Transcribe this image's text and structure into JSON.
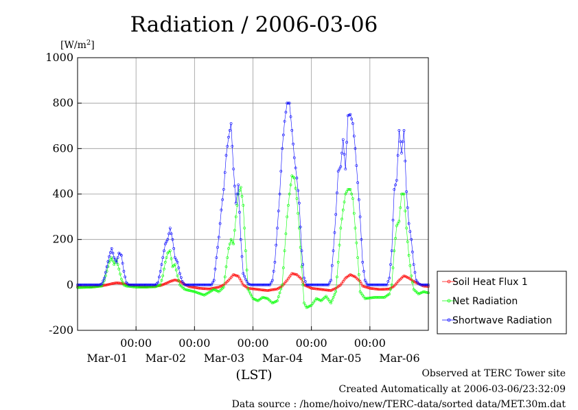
{
  "chart_data": {
    "type": "line",
    "title": "Radiation / 2006-03-06",
    "ylabel_unit": "[W/m",
    "ylabel_unit_sup": "2",
    "ylabel_unit_close": "]",
    "xlabel": "(LST)",
    "ylim": [
      -200,
      1000
    ],
    "xlim": [
      0,
      144
    ],
    "grid": true,
    "legend_position": "right",
    "y_ticks": [
      -200,
      0,
      200,
      400,
      600,
      800,
      1000
    ],
    "y_tick_labels": [
      "-200",
      "0",
      "200",
      "400",
      "600",
      "800",
      "1000"
    ],
    "x_ticks": [
      {
        "x": 24,
        "time": "00:00",
        "date": "Mar-01"
      },
      {
        "x": 48,
        "time": "00:00",
        "date": "Mar-02"
      },
      {
        "x": 72,
        "time": "00:00",
        "date": "Mar-03"
      },
      {
        "x": 96,
        "time": "00:00",
        "date": "Mar-04"
      },
      {
        "x": 120,
        "time": "00:00",
        "date": "Mar-05"
      },
      {
        "x": 144,
        "time": "",
        "date": "Mar-06"
      }
    ],
    "series": [
      {
        "name": "Soil Heat Flux 1",
        "color": "#ff0000",
        "points": [
          [
            0,
            -8
          ],
          [
            6,
            -7
          ],
          [
            10,
            -4
          ],
          [
            12,
            0
          ],
          [
            14,
            5
          ],
          [
            16,
            9
          ],
          [
            18,
            7
          ],
          [
            20,
            2
          ],
          [
            22,
            -3
          ],
          [
            26,
            -7
          ],
          [
            30,
            -8
          ],
          [
            34,
            -3
          ],
          [
            36,
            5
          ],
          [
            38,
            15
          ],
          [
            40,
            22
          ],
          [
            42,
            15
          ],
          [
            44,
            2
          ],
          [
            46,
            -8
          ],
          [
            50,
            -15
          ],
          [
            54,
            -18
          ],
          [
            58,
            -10
          ],
          [
            60,
            0
          ],
          [
            62,
            20
          ],
          [
            64,
            45
          ],
          [
            66,
            38
          ],
          [
            67,
            20
          ],
          [
            68,
            0
          ],
          [
            70,
            -15
          ],
          [
            74,
            -20
          ],
          [
            78,
            -25
          ],
          [
            82,
            -18
          ],
          [
            84,
            -5
          ],
          [
            86,
            20
          ],
          [
            88,
            50
          ],
          [
            90,
            45
          ],
          [
            92,
            25
          ],
          [
            93,
            0
          ],
          [
            96,
            -15
          ],
          [
            100,
            -20
          ],
          [
            104,
            -25
          ],
          [
            106,
            -15
          ],
          [
            108,
            0
          ],
          [
            110,
            30
          ],
          [
            112,
            45
          ],
          [
            114,
            35
          ],
          [
            116,
            15
          ],
          [
            117,
            -5
          ],
          [
            120,
            -15
          ],
          [
            124,
            -20
          ],
          [
            128,
            -18
          ],
          [
            130,
            -5
          ],
          [
            132,
            20
          ],
          [
            134,
            40
          ],
          [
            136,
            30
          ],
          [
            138,
            15
          ],
          [
            140,
            5
          ],
          [
            142,
            -5
          ],
          [
            144,
            -7
          ]
        ]
      },
      {
        "name": "Net Radiation",
        "color": "#00ff00",
        "points": [
          [
            0,
            -12
          ],
          [
            6,
            -10
          ],
          [
            10,
            -5
          ],
          [
            11,
            20
          ],
          [
            12,
            60
          ],
          [
            13,
            100
          ],
          [
            14,
            120
          ],
          [
            15,
            90
          ],
          [
            16,
            110
          ],
          [
            17,
            70
          ],
          [
            18,
            25
          ],
          [
            19,
            0
          ],
          [
            20,
            -5
          ],
          [
            24,
            -10
          ],
          [
            28,
            -10
          ],
          [
            32,
            -8
          ],
          [
            34,
            0
          ],
          [
            35,
            40
          ],
          [
            36,
            100
          ],
          [
            37,
            140
          ],
          [
            38,
            150
          ],
          [
            39,
            80
          ],
          [
            40,
            90
          ],
          [
            41,
            40
          ],
          [
            42,
            0
          ],
          [
            44,
            -20
          ],
          [
            48,
            -30
          ],
          [
            52,
            -45
          ],
          [
            56,
            -20
          ],
          [
            58,
            -30
          ],
          [
            60,
            -10
          ],
          [
            61,
            80
          ],
          [
            62,
            160
          ],
          [
            63,
            200
          ],
          [
            64,
            180
          ],
          [
            65,
            300
          ],
          [
            66,
            400
          ],
          [
            67,
            430
          ],
          [
            68,
            350
          ],
          [
            69,
            150
          ],
          [
            70,
            -20
          ],
          [
            72,
            -60
          ],
          [
            74,
            -70
          ],
          [
            76,
            -55
          ],
          [
            78,
            -60
          ],
          [
            80,
            -80
          ],
          [
            82,
            -70
          ],
          [
            84,
            0
          ],
          [
            85,
            150
          ],
          [
            86,
            300
          ],
          [
            87,
            400
          ],
          [
            88,
            480
          ],
          [
            89,
            470
          ],
          [
            90,
            380
          ],
          [
            91,
            250
          ],
          [
            92,
            80
          ],
          [
            93,
            -80
          ],
          [
            94,
            -100
          ],
          [
            96,
            -90
          ],
          [
            98,
            -60
          ],
          [
            100,
            -70
          ],
          [
            102,
            -50
          ],
          [
            104,
            -80
          ],
          [
            106,
            -30
          ],
          [
            107,
            100
          ],
          [
            108,
            250
          ],
          [
            109,
            330
          ],
          [
            110,
            400
          ],
          [
            111,
            420
          ],
          [
            112,
            420
          ],
          [
            113,
            380
          ],
          [
            114,
            250
          ],
          [
            115,
            120
          ],
          [
            116,
            -30
          ],
          [
            118,
            -60
          ],
          [
            122,
            -55
          ],
          [
            126,
            -55
          ],
          [
            128,
            -40
          ],
          [
            129,
            0
          ],
          [
            130,
            150
          ],
          [
            131,
            260
          ],
          [
            132,
            280
          ],
          [
            133,
            400
          ],
          [
            134,
            400
          ],
          [
            135,
            250
          ],
          [
            136,
            130
          ],
          [
            137,
            40
          ],
          [
            138,
            -20
          ],
          [
            140,
            -40
          ],
          [
            142,
            -30
          ],
          [
            144,
            -35
          ]
        ]
      },
      {
        "name": "Shortwave Radiation",
        "color": "#0000ff",
        "points": [
          [
            0,
            0
          ],
          [
            9,
            0
          ],
          [
            10,
            5
          ],
          [
            11,
            30
          ],
          [
            12,
            80
          ],
          [
            13,
            125
          ],
          [
            14,
            160
          ],
          [
            15,
            120
          ],
          [
            16,
            100
          ],
          [
            17,
            140
          ],
          [
            18,
            130
          ],
          [
            19,
            60
          ],
          [
            20,
            10
          ],
          [
            21,
            0
          ],
          [
            32,
            0
          ],
          [
            33,
            10
          ],
          [
            34,
            60
          ],
          [
            35,
            120
          ],
          [
            36,
            180
          ],
          [
            37,
            200
          ],
          [
            38,
            250
          ],
          [
            39,
            200
          ],
          [
            40,
            120
          ],
          [
            41,
            100
          ],
          [
            42,
            50
          ],
          [
            43,
            15
          ],
          [
            44,
            0
          ],
          [
            55,
            0
          ],
          [
            56,
            20
          ],
          [
            57,
            120
          ],
          [
            58,
            210
          ],
          [
            59,
            330
          ],
          [
            60,
            420
          ],
          [
            61,
            570
          ],
          [
            62,
            650
          ],
          [
            63,
            710
          ],
          [
            64,
            510
          ],
          [
            65,
            360
          ],
          [
            66,
            440
          ],
          [
            67,
            200
          ],
          [
            68,
            50
          ],
          [
            69,
            25
          ],
          [
            70,
            5
          ],
          [
            71,
            0
          ],
          [
            79,
            0
          ],
          [
            80,
            20
          ],
          [
            81,
            100
          ],
          [
            82,
            250
          ],
          [
            83,
            400
          ],
          [
            84,
            600
          ],
          [
            85,
            720
          ],
          [
            86,
            800
          ],
          [
            87,
            800
          ],
          [
            88,
            680
          ],
          [
            89,
            560
          ],
          [
            90,
            470
          ],
          [
            91,
            360
          ],
          [
            92,
            150
          ],
          [
            93,
            30
          ],
          [
            94,
            0
          ],
          [
            103,
            0
          ],
          [
            104,
            20
          ],
          [
            105,
            150
          ],
          [
            106,
            310
          ],
          [
            107,
            500
          ],
          [
            108,
            520
          ],
          [
            109,
            640
          ],
          [
            110,
            510
          ],
          [
            111,
            745
          ],
          [
            112,
            750
          ],
          [
            113,
            710
          ],
          [
            114,
            600
          ],
          [
            115,
            450
          ],
          [
            116,
            300
          ],
          [
            117,
            100
          ],
          [
            118,
            20
          ],
          [
            119,
            0
          ],
          [
            127,
            0
          ],
          [
            128,
            30
          ],
          [
            129,
            150
          ],
          [
            130,
            420
          ],
          [
            131,
            460
          ],
          [
            132,
            680
          ],
          [
            133,
            580
          ],
          [
            134,
            680
          ],
          [
            135,
            410
          ],
          [
            136,
            270
          ],
          [
            137,
            200
          ],
          [
            138,
            90
          ],
          [
            139,
            20
          ],
          [
            140,
            5
          ],
          [
            141,
            0
          ],
          [
            144,
            0
          ]
        ]
      }
    ]
  },
  "footer": {
    "observed": "Observed at TERC Tower site",
    "created": "Created Automatically at 2006-03-06/23:32:09",
    "source": "Data source : /home/hoivo/new/TERC-data/sorted  data/MET.30m.dat"
  }
}
